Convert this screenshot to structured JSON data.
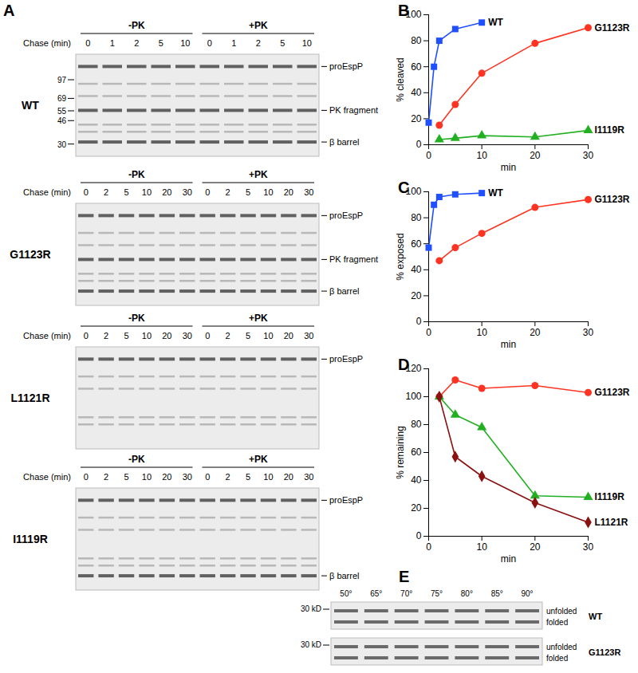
{
  "chart_data": [
    {
      "type": "line",
      "title": "B",
      "x_label": "min",
      "y_label": "% cleaved",
      "xlim": [
        0,
        30
      ],
      "xticks": [
        0,
        10,
        20,
        30
      ],
      "ylim": [
        0,
        100
      ],
      "yticks": [
        0,
        20,
        40,
        60,
        80,
        100
      ],
      "series": [
        {
          "name": "WT",
          "color": "#1f4fff",
          "marker": "square",
          "x": [
            0,
            1,
            2,
            5,
            10
          ],
          "values": [
            17,
            60,
            80,
            89,
            94
          ]
        },
        {
          "name": "G1123R",
          "color": "#ff3322",
          "marker": "circle",
          "x": [
            2,
            5,
            10,
            20,
            30
          ],
          "values": [
            15,
            31,
            55,
            78,
            90
          ]
        },
        {
          "name": "I1119R",
          "color": "#22b022",
          "marker": "triangle",
          "x": [
            2,
            5,
            10,
            20,
            30
          ],
          "values": [
            4,
            5,
            7,
            6,
            11
          ]
        }
      ]
    },
    {
      "type": "line",
      "title": "C",
      "x_label": "min",
      "y_label": "% exposed",
      "xlim": [
        0,
        30
      ],
      "xticks": [
        0,
        10,
        20,
        30
      ],
      "ylim": [
        0,
        100
      ],
      "yticks": [
        0,
        20,
        40,
        60,
        80,
        100
      ],
      "series": [
        {
          "name": "WT",
          "color": "#1f4fff",
          "marker": "square",
          "x": [
            0,
            1,
            2,
            5,
            10
          ],
          "values": [
            57,
            90,
            96,
            98,
            99
          ]
        },
        {
          "name": "G1123R",
          "color": "#ff3322",
          "marker": "circle",
          "x": [
            2,
            5,
            10,
            20,
            30
          ],
          "values": [
            47,
            57,
            68,
            88,
            94
          ]
        }
      ]
    },
    {
      "type": "line",
      "title": "D",
      "x_label": "min",
      "y_label": "% remaining",
      "xlim": [
        0,
        30
      ],
      "xticks": [
        0,
        10,
        20,
        30
      ],
      "ylim": [
        0,
        120
      ],
      "yticks": [
        0,
        20,
        40,
        60,
        80,
        100,
        120
      ],
      "series": [
        {
          "name": "G1123R",
          "color": "#ff3322",
          "marker": "circle",
          "x": [
            2,
            5,
            10,
            20,
            30
          ],
          "values": [
            100,
            112,
            106,
            108,
            103
          ]
        },
        {
          "name": "I1119R",
          "color": "#22b022",
          "marker": "triangle",
          "x": [
            2,
            5,
            10,
            20,
            30
          ],
          "values": [
            100,
            87,
            78,
            29,
            28
          ]
        },
        {
          "name": "L1121R",
          "color": "#8b1010",
          "marker": "diamond",
          "x": [
            2,
            5,
            10,
            20,
            30
          ],
          "values": [
            100,
            57,
            43,
            24,
            10
          ]
        }
      ]
    }
  ],
  "gel_panels": [
    {
      "title": "A",
      "groups": [
        "-PK",
        "+PK"
      ],
      "chase_label": "Chase (min)",
      "gels": [
        {
          "name": "WT",
          "lanes": [
            0,
            1,
            2,
            5,
            10
          ],
          "markers": [
            97,
            69,
            55,
            46,
            30
          ],
          "bands": [
            "proEspP",
            "PK fragment",
            "β barrel"
          ]
        },
        {
          "name": "G1123R",
          "lanes": [
            0,
            2,
            5,
            10,
            20,
            30
          ],
          "bands": [
            "proEspP",
            "PK fragment",
            "β barrel"
          ]
        },
        {
          "name": "L1121R",
          "lanes": [
            0,
            2,
            5,
            10,
            20,
            30
          ],
          "bands": [
            "proEspP"
          ]
        },
        {
          "name": "I1119R",
          "lanes": [
            0,
            2,
            5,
            10,
            20,
            30
          ],
          "bands": [
            "proEspP",
            "β barrel"
          ]
        }
      ]
    },
    {
      "title": "E",
      "size_marker": "30 kD",
      "lanes": [
        "50°",
        "65°",
        "70°",
        "75°",
        "80°",
        "85°",
        "90°"
      ],
      "rows": [
        {
          "name": "WT",
          "bands": [
            "unfolded",
            "folded"
          ]
        },
        {
          "name": "G1123R",
          "bands": [
            "unfolded",
            "folded"
          ]
        }
      ]
    }
  ]
}
